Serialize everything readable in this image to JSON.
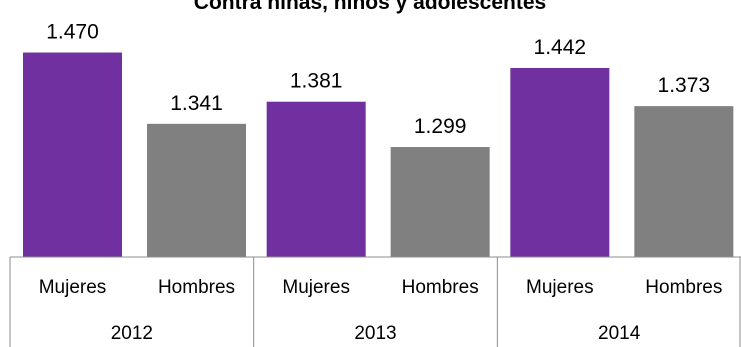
{
  "chart_data": {
    "type": "bar",
    "title": "Contra niñas, niños y adolescentes",
    "groups": [
      {
        "label": "2012",
        "bars": [
          {
            "category": "Mujeres",
            "value": 1470,
            "value_label": "1.470",
            "color": "#7030a0"
          },
          {
            "category": "Hombres",
            "value": 1341,
            "value_label": "1.341",
            "color": "#808080"
          }
        ]
      },
      {
        "label": "2013",
        "bars": [
          {
            "category": "Mujeres",
            "value": 1381,
            "value_label": "1.381",
            "color": "#7030a0"
          },
          {
            "category": "Hombres",
            "value": 1299,
            "value_label": "1.299",
            "color": "#808080"
          }
        ]
      },
      {
        "label": "2014",
        "bars": [
          {
            "category": "Mujeres",
            "value": 1442,
            "value_label": "1.442",
            "color": "#7030a0"
          },
          {
            "category": "Hombres",
            "value": 1373,
            "value_label": "1.373",
            "color": "#808080"
          }
        ]
      }
    ],
    "ylim": [
      1100,
      1480
    ],
    "grid": false,
    "legend": "none"
  }
}
